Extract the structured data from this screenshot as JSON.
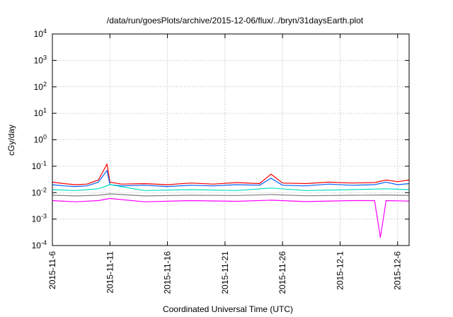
{
  "chart_data": {
    "type": "line",
    "title": "/data/run/goesPlots/archive/2015-12-06/flux/../bryn/31daysEarth.plot",
    "xlabel": "Coordinated Universal Time (UTC)",
    "ylabel": "cGy/day",
    "yscale": "log",
    "xlim": [
      "2015-11-06",
      "2015-12-07"
    ],
    "ylim": [
      0.0001,
      10000
    ],
    "grid": true,
    "x_ticks": [
      {
        "date": "2015-11-06",
        "label": "2015-11-6"
      },
      {
        "date": "2015-11-11",
        "label": "2015-11-11"
      },
      {
        "date": "2015-11-16",
        "label": "2015-11-16"
      },
      {
        "date": "2015-11-21",
        "label": "2015-11-21"
      },
      {
        "date": "2015-11-26",
        "label": "2015-11-26"
      },
      {
        "date": "2015-12-01",
        "label": "2015-12-1"
      },
      {
        "date": "2015-12-06",
        "label": "2015-12-6"
      }
    ],
    "y_ticks": [
      {
        "value": 0.0001,
        "base": "10",
        "exp": "-4"
      },
      {
        "value": 0.001,
        "base": "10",
        "exp": "-3"
      },
      {
        "value": 0.01,
        "base": "10",
        "exp": "-2"
      },
      {
        "value": 0.1,
        "base": "10",
        "exp": "-1"
      },
      {
        "value": 1,
        "base": "10",
        "exp": "0"
      },
      {
        "value": 10,
        "base": "10",
        "exp": "1"
      },
      {
        "value": 100,
        "base": "10",
        "exp": "2"
      },
      {
        "value": 1000,
        "base": "10",
        "exp": "3"
      },
      {
        "value": 10000,
        "base": "10",
        "exp": "4"
      }
    ],
    "series": [
      {
        "color": "#ff0000",
        "x": [
          "2015-11-06",
          "2015-11-07",
          "2015-11-08",
          "2015-11-09",
          "2015-11-10",
          "2015-11-10T18:00",
          "2015-11-11",
          "2015-11-12",
          "2015-11-14",
          "2015-11-16",
          "2015-11-18",
          "2015-11-20",
          "2015-11-22",
          "2015-11-24",
          "2015-11-25",
          "2015-11-26",
          "2015-11-28",
          "2015-11-30",
          "2015-12-02",
          "2015-12-04",
          "2015-12-05",
          "2015-12-06",
          "2015-12-07"
        ],
        "y": [
          0.025,
          0.022,
          0.02,
          0.021,
          0.03,
          0.12,
          0.025,
          0.021,
          0.022,
          0.02,
          0.023,
          0.021,
          0.024,
          0.022,
          0.05,
          0.023,
          0.022,
          0.025,
          0.023,
          0.024,
          0.03,
          0.026,
          0.03
        ]
      },
      {
        "color": "#0060ff",
        "x": [
          "2015-11-06",
          "2015-11-07",
          "2015-11-08",
          "2015-11-09",
          "2015-11-10",
          "2015-11-10T18:00",
          "2015-11-11",
          "2015-11-12",
          "2015-11-14",
          "2015-11-16",
          "2015-11-18",
          "2015-11-20",
          "2015-11-22",
          "2015-11-24",
          "2015-11-25",
          "2015-11-26",
          "2015-11-28",
          "2015-11-30",
          "2015-12-02",
          "2015-12-04",
          "2015-12-05",
          "2015-12-06",
          "2015-12-07"
        ],
        "y": [
          0.02,
          0.018,
          0.017,
          0.018,
          0.025,
          0.07,
          0.02,
          0.018,
          0.019,
          0.017,
          0.019,
          0.018,
          0.02,
          0.019,
          0.035,
          0.019,
          0.018,
          0.021,
          0.019,
          0.02,
          0.025,
          0.02,
          0.022
        ]
      },
      {
        "color": "#00e0c0",
        "x": [
          "2015-11-06",
          "2015-11-08",
          "2015-11-10",
          "2015-11-11",
          "2015-11-14",
          "2015-11-18",
          "2015-11-22",
          "2015-11-25",
          "2015-11-28",
          "2015-12-02",
          "2015-12-05",
          "2015-12-07"
        ],
        "y": [
          0.013,
          0.012,
          0.014,
          0.02,
          0.012,
          0.013,
          0.012,
          0.015,
          0.012,
          0.013,
          0.014,
          0.013
        ]
      },
      {
        "color": "#808080",
        "x": [
          "2015-11-06",
          "2015-11-08",
          "2015-11-10",
          "2015-11-11",
          "2015-11-14",
          "2015-11-18",
          "2015-11-22",
          "2015-11-25",
          "2015-11-28",
          "2015-12-02",
          "2015-12-05",
          "2015-12-07"
        ],
        "y": [
          0.008,
          0.0075,
          0.008,
          0.009,
          0.0075,
          0.008,
          0.0078,
          0.0085,
          0.0076,
          0.008,
          0.0082,
          0.0079
        ]
      },
      {
        "color": "#ff00ff",
        "x": [
          "2015-11-06",
          "2015-11-08",
          "2015-11-10",
          "2015-11-11",
          "2015-11-14",
          "2015-11-18",
          "2015-11-22",
          "2015-11-25",
          "2015-11-28",
          "2015-12-02",
          "2015-12-04",
          "2015-12-04T12:00",
          "2015-12-05",
          "2015-12-07"
        ],
        "y": [
          0.005,
          0.0045,
          0.005,
          0.006,
          0.0045,
          0.005,
          0.0047,
          0.0052,
          0.0046,
          0.005,
          0.005,
          0.0002,
          0.005,
          0.0048
        ]
      }
    ]
  }
}
